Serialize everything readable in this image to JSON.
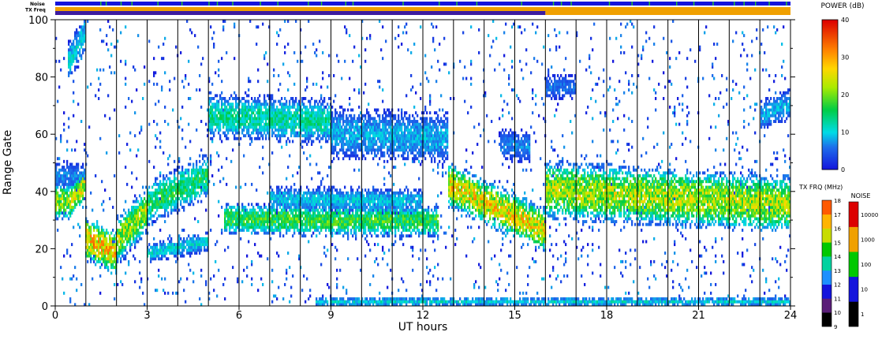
{
  "chart_data": {
    "type": "heatmap",
    "top_bars": {
      "noise_label": "Noise",
      "txfreq_label": "TX Freq",
      "txfreq_switch_hours": 16
    },
    "xlabel": "UT hours",
    "ylabel": "Range Gate",
    "xlim": [
      0,
      24
    ],
    "ylim": [
      0,
      100
    ],
    "x_ticks": [
      "0",
      "3",
      "6",
      "9",
      "12",
      "15",
      "18",
      "21",
      "24"
    ],
    "y_ticks": [
      "0",
      "20",
      "40",
      "60",
      "80",
      "100"
    ],
    "grid": "vertical lines every hour",
    "power_scale": {
      "title": "POWER (dB)",
      "range": [
        0,
        40
      ],
      "ticks": [
        "0",
        "10",
        "20",
        "30",
        "40"
      ]
    },
    "txfreq_scale": {
      "title": "TX FRQ (MHz)",
      "ticks": [
        "9",
        "10",
        "11",
        "12",
        "13",
        "14",
        "15",
        "16",
        "17",
        "18"
      ]
    },
    "noise_scale": {
      "title": "NOISE",
      "ticks": [
        "1",
        "10",
        "100",
        "1000",
        "10000"
      ]
    },
    "echo_bands": [
      {
        "t0": 0.0,
        "t1": 0.5,
        "r0": 36,
        "r1": 36,
        "w": 12,
        "pk": 24
      },
      {
        "t0": 0.5,
        "t1": 1.0,
        "r0": 36,
        "r1": 42,
        "w": 10,
        "pk": 28
      },
      {
        "t0": 1.0,
        "t1": 2.0,
        "r0": 23,
        "r1": 18,
        "w": 14,
        "pk": 32
      },
      {
        "t0": 2.0,
        "t1": 3.0,
        "r0": 22,
        "r1": 33,
        "w": 14,
        "pk": 26
      },
      {
        "t0": 3.0,
        "t1": 5.0,
        "r0": 35,
        "r1": 45,
        "w": 14,
        "pk": 18
      },
      {
        "t0": 5.0,
        "t1": 9.0,
        "r0": 66,
        "r1": 64,
        "w": 14,
        "pk": 15
      },
      {
        "t0": 9.0,
        "t1": 12.8,
        "r0": 60,
        "r1": 58,
        "w": 16,
        "pk": 10
      },
      {
        "t0": 5.5,
        "t1": 12.5,
        "r0": 30,
        "r1": 29,
        "w": 10,
        "pk": 20
      },
      {
        "t0": 7.0,
        "t1": 12.0,
        "r0": 37,
        "r1": 36,
        "w": 8,
        "pk": 11
      },
      {
        "t0": 12.8,
        "t1": 16.0,
        "r0": 42,
        "r1": 26,
        "w": 14,
        "pk": 30
      },
      {
        "t0": 14.5,
        "t1": 15.5,
        "r0": 56,
        "r1": 55,
        "w": 10,
        "pk": 8
      },
      {
        "t0": 16.0,
        "t1": 24.0,
        "r0": 40,
        "r1": 35,
        "w": 18,
        "pk": 26
      },
      {
        "t0": 3.0,
        "t1": 5.0,
        "r0": 18,
        "r1": 22,
        "w": 6,
        "pk": 12
      },
      {
        "t0": 0.0,
        "t1": 1.0,
        "r0": 45,
        "r1": 44,
        "w": 10,
        "pk": 8
      },
      {
        "t0": 8.5,
        "t1": 24.0,
        "r0": 1,
        "r1": 1,
        "w": 3,
        "pk": 12
      },
      {
        "t0": 16.0,
        "t1": 17.0,
        "r0": 76,
        "r1": 76,
        "w": 8,
        "pk": 7
      },
      {
        "t0": 23.0,
        "t1": 24.0,
        "r0": 66,
        "r1": 70,
        "w": 10,
        "pk": 10
      },
      {
        "t0": 0.4,
        "t1": 1.0,
        "r0": 84,
        "r1": 95,
        "w": 12,
        "pk": 12
      }
    ]
  }
}
